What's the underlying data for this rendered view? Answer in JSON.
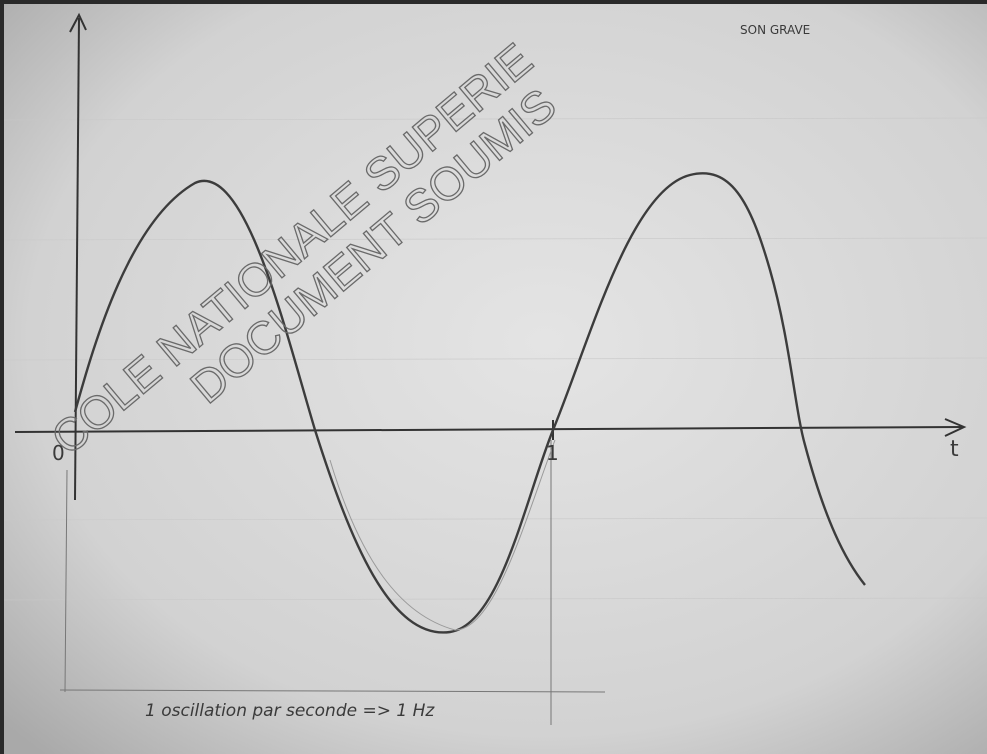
{
  "note_title": "SON GRAVE",
  "axis": {
    "origin": "0",
    "period_mark": "1",
    "x_label": "t"
  },
  "caption": "1 oscillation par seconde => 1 Hz",
  "watermark": {
    "line1": "COLE NATIONALE SUPERIE",
    "line2": "DOCUMENT SOUMIS"
  }
}
